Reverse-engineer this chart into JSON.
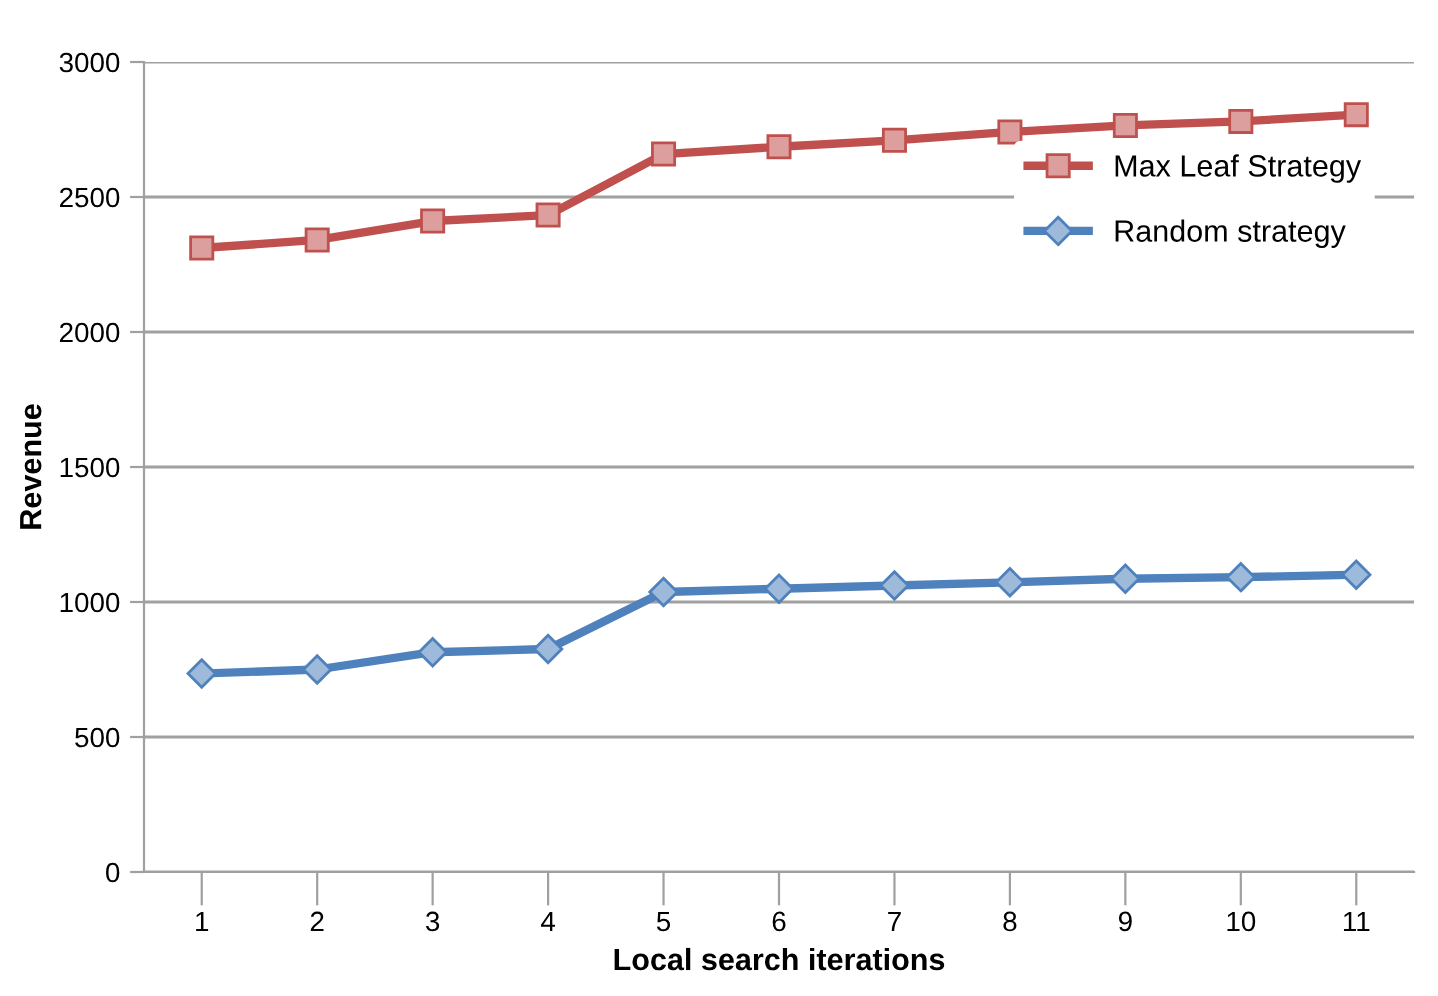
{
  "chart_data": {
    "type": "line",
    "xlabel": "Local search iterations",
    "ylabel": "Revenue",
    "categories": [
      "1",
      "2",
      "3",
      "4",
      "5",
      "6",
      "7",
      "8",
      "9",
      "10",
      "11"
    ],
    "series": [
      {
        "name": "Max Leaf Strategy",
        "color": "#c0504d",
        "marker": "square",
        "values": [
          2311,
          2341,
          2411,
          2433,
          2659,
          2686,
          2710,
          2741,
          2765,
          2780,
          2805
        ]
      },
      {
        "name": "Random strategy",
        "color": "#4f81bd",
        "marker": "diamond",
        "values": [
          735,
          750,
          814,
          826,
          1037,
          1049,
          1061,
          1073,
          1086,
          1092,
          1101
        ]
      }
    ],
    "ylim": [
      0,
      3000
    ],
    "yticks": [
      0,
      500,
      1000,
      1500,
      2000,
      2500,
      3000
    ],
    "grid": "y",
    "legend": "top right",
    "line_style": "solid"
  }
}
